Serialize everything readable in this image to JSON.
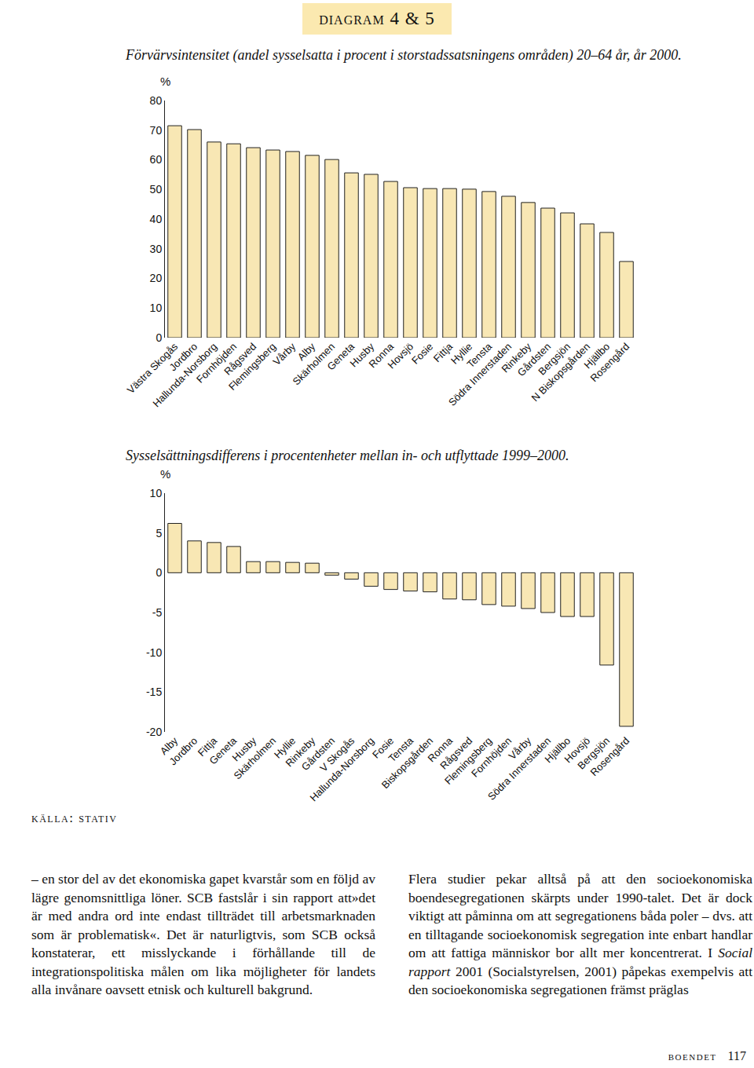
{
  "page": {
    "header": "diagram 4 & 5",
    "source": "källa: stativ",
    "columns": [
      [
        {
          "text": "– en stor del av det ekonomiska gapet kvarstår som en följd av lägre genomsnittliga löner. SCB fastslår i sin rapport att»det är med andra ord inte endast tillträdet till arbetsmarknaden som är problematisk«. Det är naturligtvis, som SCB också konstaterar, ett misslyckande i förhållande till de integrationspolitiska målen om lika möjligheter för landets alla invånare oavsett etnisk och kulturell bakgrund."
        }
      ],
      [
        {
          "text": "Flera studier pekar alltså på att den socioekonomiska boendesegregationen skärpts under 1990-talet. Det är dock viktigt att påminna om att segregationens båda poler – dvs. att en tilltagande socioekonomisk segregation inte enbart handlar om att fattiga människor bor allt mer koncentrerat. I "
        },
        {
          "text": "Social rapport",
          "italic": true
        },
        {
          "text": " 2001 (Socialstyrelsen, 2001) påpekas exempelvis att den socioekonomiska segregationen främst präglas"
        }
      ]
    ],
    "footer": {
      "section": "boendet",
      "page": "117"
    }
  },
  "chart_data": [
    {
      "type": "bar",
      "title": "Förvärvsintensitet (andel sysselsatta i procent i storstadssatsningens områden) 20–64 år, år 2000.",
      "y_label": "%",
      "categories": [
        "Västra Skogås",
        "Jordbro",
        "Hallunda-Norsborg",
        "Fornhöjden",
        "Rågsved",
        "Flemingsberg",
        "Vårby",
        "Alby",
        "Skärholmen",
        "Geneta",
        "Husby",
        "Ronna",
        "Hovsjö",
        "Fosie",
        "Fittja",
        "Hyllie",
        "Tensta",
        "Södra Innerstaden",
        "Rinkeby",
        "Gårdsten",
        "Bergsjön",
        "N Biskopsgården",
        "Hjällbo",
        "Rosengård"
      ],
      "values": [
        71.5,
        70.2,
        66.0,
        65.4,
        64.1,
        63.3,
        62.8,
        61.5,
        60.1,
        55.6,
        55.1,
        52.7,
        50.6,
        50.3,
        50.3,
        50.1,
        49.3,
        47.7,
        45.6,
        43.7,
        42.1,
        38.4,
        35.5,
        25.7
      ],
      "color": "#f8e7b4",
      "ylim": [
        0,
        80
      ],
      "yticks": [
        0,
        10,
        20,
        30,
        40,
        50,
        60,
        70,
        80
      ],
      "grid": false
    },
    {
      "type": "bar",
      "title": "Sysselsättningsdifferens i procentenheter mellan in- och utflyttade 1999–2000.",
      "y_label": "%",
      "categories": [
        "Alby",
        "Jordbro",
        "Fittja",
        "Geneta",
        "Husby",
        "Skärholmen",
        "Hyllie",
        "Rinkeby",
        "Gårdsten",
        "V Skogås",
        "Hallunda-Norsborg",
        "Fosie",
        "Tensta",
        "Biskopsgården",
        "Ronna",
        "Rågsved",
        "Flemingsberg",
        "Fornhöjden",
        "Vårby",
        "Södra Innerstaden",
        "Hjällbo",
        "Hovsjö",
        "Bergsjön",
        "Rosengård"
      ],
      "values": [
        6.2,
        4.0,
        3.8,
        3.3,
        1.4,
        1.4,
        1.3,
        1.2,
        -0.3,
        -0.8,
        -1.7,
        -2.1,
        -2.3,
        -2.4,
        -3.3,
        -3.4,
        -4.0,
        -4.2,
        -4.5,
        -5.0,
        -5.5,
        -5.5,
        -11.6,
        -19.3
      ],
      "color": "#f8e7b4",
      "ylim": [
        -20,
        10
      ],
      "yticks": [
        -20,
        -15,
        -10,
        -5,
        0,
        5,
        10
      ],
      "grid": false
    }
  ]
}
